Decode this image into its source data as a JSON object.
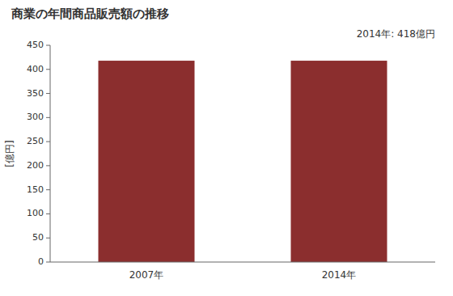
{
  "chart_data": {
    "type": "bar",
    "title": "商業の年間商品販売額の推移",
    "ylabel": "[億円]",
    "categories": [
      "2007年",
      "2014年"
    ],
    "values": [
      418,
      418
    ],
    "color": "#8B2E2E",
    "ylim": [
      0,
      450
    ],
    "yticks": [
      0,
      50,
      100,
      150,
      200,
      250,
      300,
      350,
      400,
      450
    ],
    "annotation": "2014年: 418億円",
    "grid": false
  }
}
